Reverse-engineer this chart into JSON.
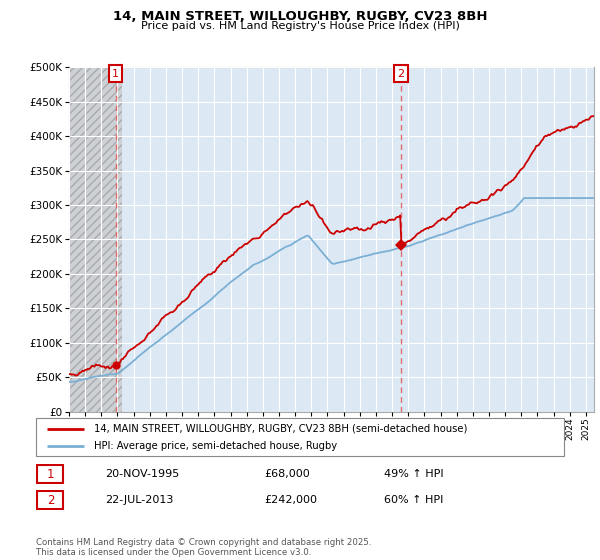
{
  "title_line1": "14, MAIN STREET, WILLOUGHBY, RUGBY, CV23 8BH",
  "title_line2": "Price paid vs. HM Land Registry's House Price Index (HPI)",
  "legend_label1": "14, MAIN STREET, WILLOUGHBY, RUGBY, CV23 8BH (semi-detached house)",
  "legend_label2": "HPI: Average price, semi-detached house, Rugby",
  "annotation1_year": 1995.88,
  "annotation1_value": 68000,
  "annotation2_year": 2013.55,
  "annotation2_value": 242000,
  "background_color": "#ffffff",
  "plot_bg_color": "#dce9f5",
  "grid_color": "#ffffff",
  "line1_color": "#cc0000",
  "line2_color": "#7bafd4",
  "vline_color": "#e06060",
  "ylim": [
    0,
    500000
  ],
  "yticks": [
    0,
    50000,
    100000,
    150000,
    200000,
    250000,
    300000,
    350000,
    400000,
    450000,
    500000
  ],
  "copyright_text": "Contains HM Land Registry data © Crown copyright and database right 2025.\nThis data is licensed under the Open Government Licence v3.0.",
  "fn1_date": "20-NOV-1995",
  "fn1_price": "£68,000",
  "fn1_hpi": "49% ↑ HPI",
  "fn2_date": "22-JUL-2013",
  "fn2_price": "£242,000",
  "fn2_hpi": "60% ↑ HPI"
}
